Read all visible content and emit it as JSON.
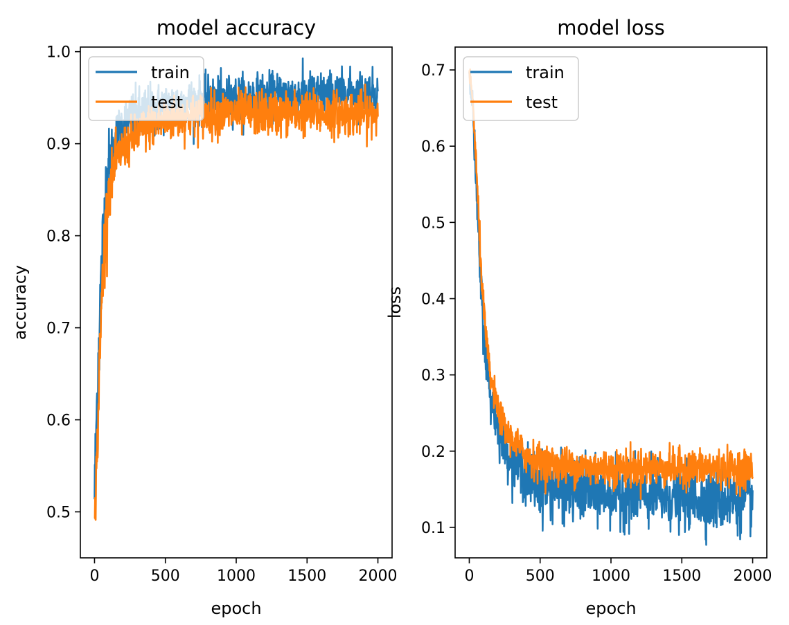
{
  "chart_data": [
    {
      "type": "line",
      "title": "model accuracy",
      "xlabel": "epoch",
      "ylabel": "accuracy",
      "xlim": [
        -100,
        2100
      ],
      "ylim": [
        0.45,
        1.005
      ],
      "xticks": [
        0,
        500,
        1000,
        1500,
        2000
      ],
      "xtick_labels": [
        "0",
        "500",
        "1000",
        "1500",
        "2000"
      ],
      "yticks": [
        0.5,
        0.6,
        0.7,
        0.8,
        0.9,
        1.0
      ],
      "ytick_labels": [
        "0.5",
        "0.6",
        "0.7",
        "0.8",
        "0.9",
        "1.0"
      ],
      "legend_position": "upper-left",
      "series": [
        {
          "name": "train",
          "color": "#1f77b4",
          "x": [
            0,
            25,
            50,
            75,
            100,
            150,
            200,
            300,
            400,
            500,
            600,
            700,
            800,
            1000,
            1200,
            1400,
            1600,
            1800,
            2000
          ],
          "y": [
            0.52,
            0.66,
            0.76,
            0.84,
            0.875,
            0.905,
            0.92,
            0.93,
            0.935,
            0.94,
            0.943,
            0.945,
            0.948,
            0.95,
            0.952,
            0.953,
            0.954,
            0.955,
            0.955
          ],
          "noise": [
            0.02,
            0.03,
            0.03,
            0.025,
            0.02,
            0.015,
            0.015,
            0.015,
            0.015,
            0.013,
            0.013,
            0.013,
            0.012,
            0.012,
            0.012,
            0.012,
            0.012,
            0.012,
            0.012
          ]
        },
        {
          "name": "test",
          "color": "#ff7f0e",
          "x": [
            0,
            25,
            50,
            75,
            100,
            150,
            200,
            300,
            400,
            500,
            600,
            700,
            800,
            1000,
            1200,
            1400,
            1600,
            1800,
            2000
          ],
          "y": [
            0.48,
            0.6,
            0.73,
            0.8,
            0.85,
            0.88,
            0.895,
            0.91,
            0.92,
            0.925,
            0.928,
            0.93,
            0.932,
            0.933,
            0.933,
            0.933,
            0.933,
            0.933,
            0.933
          ],
          "noise": [
            0.01,
            0.02,
            0.02,
            0.02,
            0.015,
            0.012,
            0.012,
            0.012,
            0.012,
            0.012,
            0.012,
            0.012,
            0.012,
            0.012,
            0.012,
            0.012,
            0.012,
            0.012,
            0.012
          ]
        }
      ]
    },
    {
      "type": "line",
      "title": "model loss",
      "xlabel": "epoch",
      "ylabel": "loss",
      "xlim": [
        -100,
        2100
      ],
      "ylim": [
        0.06,
        0.73
      ],
      "xticks": [
        0,
        500,
        1000,
        1500,
        2000
      ],
      "xtick_labels": [
        "0",
        "500",
        "1000",
        "1500",
        "2000"
      ],
      "yticks": [
        0.1,
        0.2,
        0.3,
        0.4,
        0.5,
        0.6,
        0.7
      ],
      "ytick_labels": [
        "0.1",
        "0.2",
        "0.3",
        "0.4",
        "0.5",
        "0.6",
        "0.7"
      ],
      "legend_position": "upper-left",
      "series": [
        {
          "name": "train",
          "color": "#1f77b4",
          "x": [
            0,
            25,
            50,
            75,
            100,
            125,
            150,
            200,
            250,
            300,
            400,
            500,
            700,
            1000,
            1300,
            1600,
            1800,
            2000
          ],
          "y": [
            0.7,
            0.65,
            0.54,
            0.44,
            0.36,
            0.31,
            0.27,
            0.235,
            0.205,
            0.19,
            0.17,
            0.155,
            0.148,
            0.145,
            0.14,
            0.138,
            0.136,
            0.135
          ],
          "noise": [
            0.005,
            0.01,
            0.015,
            0.015,
            0.015,
            0.015,
            0.015,
            0.015,
            0.015,
            0.015,
            0.02,
            0.02,
            0.02,
            0.02,
            0.02,
            0.02,
            0.02,
            0.02
          ]
        },
        {
          "name": "test",
          "color": "#ff7f0e",
          "x": [
            0,
            25,
            50,
            75,
            100,
            125,
            150,
            200,
            250,
            300,
            400,
            500,
            700,
            1000,
            1300,
            1600,
            1800,
            2000
          ],
          "y": [
            0.695,
            0.66,
            0.57,
            0.47,
            0.39,
            0.335,
            0.295,
            0.255,
            0.23,
            0.215,
            0.195,
            0.185,
            0.18,
            0.178,
            0.178,
            0.178,
            0.177,
            0.177
          ],
          "noise": [
            0.004,
            0.008,
            0.01,
            0.01,
            0.01,
            0.01,
            0.01,
            0.01,
            0.01,
            0.01,
            0.012,
            0.012,
            0.012,
            0.012,
            0.012,
            0.012,
            0.012,
            0.012
          ]
        }
      ]
    }
  ]
}
